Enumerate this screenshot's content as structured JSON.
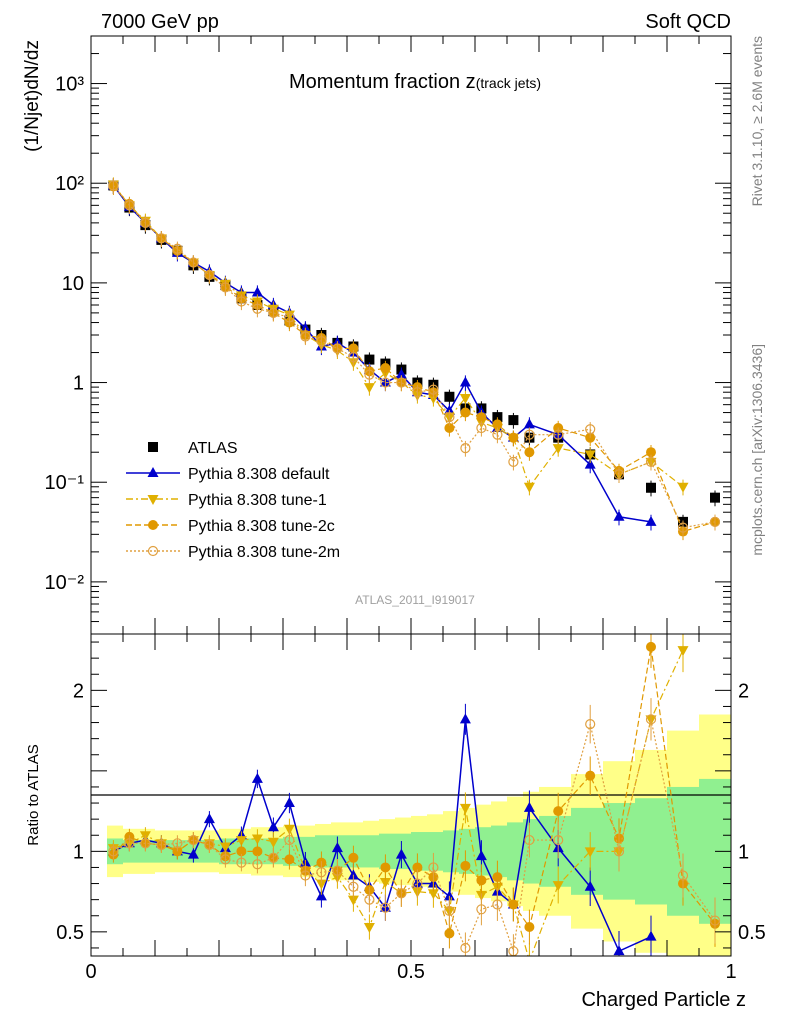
{
  "header": {
    "left": "7000 GeV pp",
    "right": "Soft QCD"
  },
  "side": {
    "top": "Rivet 3.1.10, ≥ 2.6M events",
    "bottom": "mcplots.cern.ch [arXiv:1306.3436]"
  },
  "chart_data": [
    {
      "type": "scatter",
      "panel": "main",
      "title_main": "Momentum fraction z",
      "title_sub": "(track jets)",
      "ylabel": "(1/Njet)dN/dz",
      "xlabel": "Charged Particle z",
      "analysis_id": "ATLAS_2011_I919017",
      "xlim": [
        0,
        1
      ],
      "ylim": [
        0.003,
        3000
      ],
      "yscale": "log",
      "y_tick_labels": [
        "10⁻²",
        "10⁻¹",
        "1",
        "10",
        "10²",
        "10³"
      ],
      "x_tick_labels": [
        "0",
        "0.5",
        "1"
      ],
      "legend_position": "lower-left",
      "series": [
        {
          "name": "ATLAS",
          "color": "#000000",
          "marker": "square",
          "x": [
            0.035,
            0.06,
            0.085,
            0.11,
            0.135,
            0.16,
            0.185,
            0.21,
            0.235,
            0.26,
            0.285,
            0.31,
            0.335,
            0.36,
            0.385,
            0.41,
            0.435,
            0.46,
            0.485,
            0.51,
            0.535,
            0.56,
            0.585,
            0.61,
            0.635,
            0.66,
            0.685,
            0.73,
            0.78,
            0.825,
            0.875,
            0.925,
            0.975
          ],
          "y": [
            95,
            57,
            38,
            27,
            21,
            15,
            11.5,
            9.5,
            7,
            6,
            5.2,
            4.2,
            3.4,
            3,
            2.5,
            2.3,
            1.7,
            1.55,
            1.35,
            1.0,
            0.95,
            0.72,
            0.55,
            0.55,
            0.45,
            0.42,
            0.28,
            0.28,
            0.19,
            0.12,
            0.088,
            0.04,
            0.07
          ]
        },
        {
          "name": "Pythia 8.308 default",
          "color": "#0000cc",
          "marker": "triangle-up",
          "line": "solid",
          "x": [
            0.035,
            0.06,
            0.085,
            0.11,
            0.135,
            0.16,
            0.185,
            0.21,
            0.235,
            0.26,
            0.285,
            0.31,
            0.335,
            0.36,
            0.385,
            0.41,
            0.435,
            0.46,
            0.485,
            0.51,
            0.535,
            0.56,
            0.585,
            0.61,
            0.635,
            0.66,
            0.685,
            0.73,
            0.78,
            0.825,
            0.875
          ],
          "y": [
            95,
            58,
            40,
            28,
            20,
            16,
            13,
            10,
            8,
            8,
            6,
            5,
            3.5,
            2.3,
            2.5,
            2.0,
            1.35,
            1.0,
            1.2,
            0.8,
            0.75,
            0.52,
            1.0,
            0.5,
            0.35,
            0.28,
            0.38,
            0.3,
            0.15,
            0.045,
            0.04
          ]
        },
        {
          "name": "Pythia 8.308 tune-1",
          "color": "#e0b000",
          "marker": "triangle-down",
          "line": "dashdot",
          "x": [
            0.035,
            0.06,
            0.085,
            0.11,
            0.135,
            0.16,
            0.185,
            0.21,
            0.235,
            0.26,
            0.285,
            0.31,
            0.335,
            0.36,
            0.385,
            0.41,
            0.435,
            0.46,
            0.485,
            0.51,
            0.535,
            0.56,
            0.585,
            0.61,
            0.635,
            0.66,
            0.685,
            0.73,
            0.78,
            0.825,
            0.875,
            0.925
          ],
          "y": [
            97,
            60,
            42,
            28,
            21,
            16,
            12,
            9.8,
            7.5,
            6.5,
            5.5,
            4.8,
            3.0,
            2.4,
            2.1,
            1.6,
            0.9,
            1.25,
            1.0,
            0.75,
            0.7,
            0.45,
            0.7,
            0.4,
            0.35,
            0.28,
            0.09,
            0.22,
            0.19,
            0.12,
            0.16,
            0.09
          ]
        },
        {
          "name": "Pythia 8.308 tune-2c",
          "color": "#e09800",
          "marker": "circle",
          "line": "dashed",
          "x": [
            0.035,
            0.06,
            0.085,
            0.11,
            0.135,
            0.16,
            0.185,
            0.21,
            0.235,
            0.26,
            0.285,
            0.31,
            0.335,
            0.36,
            0.385,
            0.41,
            0.435,
            0.46,
            0.485,
            0.51,
            0.535,
            0.56,
            0.585,
            0.61,
            0.635,
            0.66,
            0.685,
            0.73,
            0.78,
            0.825,
            0.875,
            0.925,
            0.975
          ],
          "y": [
            93,
            62,
            40,
            28,
            21,
            16,
            12,
            9.2,
            7,
            6,
            5.0,
            4.0,
            3.0,
            2.8,
            2.2,
            2.2,
            1.3,
            1.4,
            1.0,
            0.9,
            0.8,
            0.35,
            0.5,
            0.45,
            0.38,
            0.28,
            0.2,
            0.35,
            0.28,
            0.13,
            0.2,
            0.032,
            0.04
          ]
        },
        {
          "name": "Pythia 8.308 tune-2m",
          "color": "#e0a040",
          "marker": "open-circle",
          "line": "dotted",
          "x": [
            0.035,
            0.06,
            0.085,
            0.11,
            0.135,
            0.16,
            0.185,
            0.21,
            0.235,
            0.26,
            0.285,
            0.31,
            0.335,
            0.36,
            0.385,
            0.41,
            0.435,
            0.46,
            0.485,
            0.51,
            0.535,
            0.56,
            0.585,
            0.61,
            0.635,
            0.66,
            0.685,
            0.73,
            0.78,
            0.825,
            0.875,
            0.925,
            0.975
          ],
          "y": [
            95,
            60,
            40,
            28,
            22,
            16,
            12,
            9,
            6.5,
            5.5,
            5,
            4.5,
            2.9,
            2.6,
            2.2,
            1.8,
            1.2,
            1.0,
            1.0,
            0.8,
            0.85,
            0.45,
            0.22,
            0.35,
            0.3,
            0.16,
            0.3,
            0.3,
            0.34,
            0.12,
            0.16,
            0.035,
            0.04
          ]
        }
      ]
    },
    {
      "type": "line",
      "panel": "ratio",
      "ylabel": "Ratio to ATLAS",
      "xlabel": "Charged Particle z",
      "xlim": [
        0,
        1
      ],
      "ylim": [
        0.35,
        2.35
      ],
      "y_tick_labels": [
        "0.5",
        "1",
        "2"
      ],
      "x_tick_labels": [
        "0",
        "0.5",
        "1"
      ],
      "uncertainty_bands": {
        "edges": [
          0.025,
          0.05,
          0.075,
          0.1,
          0.125,
          0.15,
          0.175,
          0.2,
          0.225,
          0.25,
          0.275,
          0.3,
          0.325,
          0.35,
          0.375,
          0.4,
          0.425,
          0.45,
          0.475,
          0.5,
          0.525,
          0.55,
          0.575,
          0.6,
          0.625,
          0.65,
          0.675,
          0.7,
          0.75,
          0.8,
          0.85,
          0.9,
          0.95,
          1.0
        ],
        "inner_color": "#90f090",
        "outer_color": "#ffff88",
        "inner_half_width": [
          0.08,
          0.07,
          0.07,
          0.07,
          0.07,
          0.07,
          0.07,
          0.08,
          0.08,
          0.08,
          0.08,
          0.09,
          0.09,
          0.1,
          0.1,
          0.1,
          0.1,
          0.11,
          0.11,
          0.12,
          0.12,
          0.13,
          0.14,
          0.15,
          0.16,
          0.18,
          0.2,
          0.22,
          0.27,
          0.3,
          0.33,
          0.4,
          0.45
        ],
        "outer_half_width": [
          0.16,
          0.14,
          0.14,
          0.13,
          0.13,
          0.13,
          0.13,
          0.14,
          0.14,
          0.15,
          0.15,
          0.16,
          0.16,
          0.17,
          0.18,
          0.18,
          0.19,
          0.2,
          0.21,
          0.22,
          0.23,
          0.25,
          0.27,
          0.29,
          0.31,
          0.34,
          0.37,
          0.4,
          0.48,
          0.56,
          0.63,
          0.75,
          0.85
        ]
      },
      "series": [
        {
          "name": "Pythia 8.308 default",
          "x": [
            0.035,
            0.06,
            0.085,
            0.11,
            0.135,
            0.16,
            0.185,
            0.21,
            0.235,
            0.26,
            0.285,
            0.31,
            0.335,
            0.36,
            0.385,
            0.41,
            0.435,
            0.46,
            0.485,
            0.51,
            0.535,
            0.56,
            0.585,
            0.61,
            0.635,
            0.66,
            0.685,
            0.73,
            0.78,
            0.825,
            0.875
          ],
          "y": [
            1.0,
            1.05,
            1.07,
            1.05,
            1.0,
            0.98,
            1.2,
            1.02,
            1.1,
            1.45,
            1.15,
            1.3,
            0.93,
            0.72,
            1.02,
            0.85,
            0.78,
            0.65,
            0.98,
            0.8,
            0.8,
            0.72,
            1.82,
            0.97,
            0.75,
            0.67,
            1.27,
            1.02,
            0.78,
            0.38,
            0.47
          ]
        },
        {
          "name": "Pythia 8.308 tune-1",
          "x": [
            0.035,
            0.06,
            0.085,
            0.11,
            0.135,
            0.16,
            0.185,
            0.21,
            0.235,
            0.26,
            0.285,
            0.31,
            0.335,
            0.36,
            0.385,
            0.41,
            0.435,
            0.46,
            0.485,
            0.51,
            0.535,
            0.56,
            0.585,
            0.61,
            0.635,
            0.66,
            0.685,
            0.73,
            0.78,
            0.825,
            0.875,
            0.925
          ],
          "y": [
            1.02,
            1.05,
            1.1,
            1.05,
            1.0,
            1.07,
            1.05,
            1.03,
            1.07,
            1.08,
            1.06,
            1.14,
            0.88,
            0.8,
            0.84,
            0.7,
            0.53,
            0.81,
            0.74,
            0.75,
            0.74,
            0.63,
            1.27,
            0.73,
            0.78,
            0.67,
            0.32,
            0.79,
            1.0,
            1.0,
            1.82,
            2.25
          ]
        },
        {
          "name": "Pythia 8.308 tune-2c",
          "x": [
            0.035,
            0.06,
            0.085,
            0.11,
            0.135,
            0.16,
            0.185,
            0.21,
            0.235,
            0.26,
            0.285,
            0.31,
            0.335,
            0.36,
            0.385,
            0.41,
            0.435,
            0.46,
            0.485,
            0.51,
            0.535,
            0.56,
            0.585,
            0.61,
            0.635,
            0.66,
            0.685,
            0.73,
            0.78,
            0.825,
            0.875,
            0.925,
            0.975
          ],
          "y": [
            0.98,
            1.09,
            1.05,
            1.04,
            1.0,
            1.07,
            1.04,
            0.97,
            1.0,
            1.0,
            0.96,
            0.95,
            0.88,
            0.93,
            0.88,
            0.96,
            0.76,
            0.9,
            0.74,
            0.9,
            0.84,
            0.49,
            0.91,
            0.82,
            0.84,
            0.67,
            0.53,
            1.25,
            1.47,
            1.08,
            2.27,
            0.8,
            0.55
          ]
        },
        {
          "name": "Pythia 8.308 tune-2m",
          "x": [
            0.035,
            0.06,
            0.085,
            0.11,
            0.135,
            0.16,
            0.185,
            0.21,
            0.235,
            0.26,
            0.285,
            0.31,
            0.335,
            0.36,
            0.385,
            0.41,
            0.435,
            0.46,
            0.485,
            0.51,
            0.535,
            0.56,
            0.585,
            0.61,
            0.635,
            0.66,
            0.685,
            0.73,
            0.78,
            0.825,
            0.875,
            0.925,
            0.975
          ],
          "y": [
            1.0,
            1.05,
            1.05,
            1.04,
            1.05,
            1.07,
            1.04,
            0.95,
            0.93,
            0.92,
            0.96,
            1.07,
            0.85,
            0.87,
            0.88,
            0.78,
            0.7,
            0.65,
            0.74,
            0.8,
            0.9,
            0.63,
            0.4,
            0.64,
            0.67,
            0.38,
            1.07,
            1.07,
            1.79,
            1.0,
            1.82,
            0.85,
            0.57
          ]
        }
      ]
    }
  ]
}
